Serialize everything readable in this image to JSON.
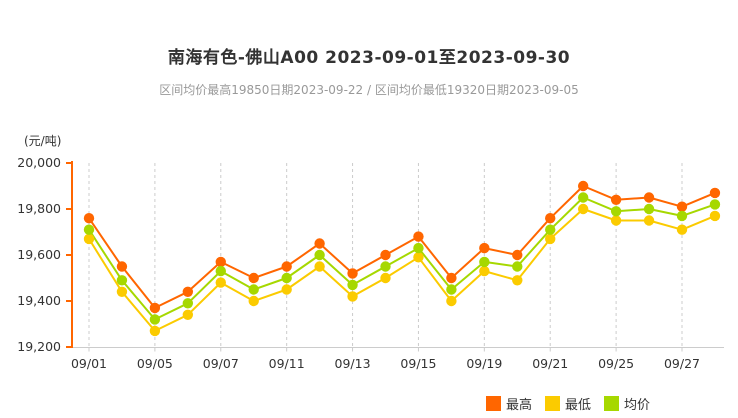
{
  "page": {
    "title": "南海有色-佛山A00 2023-09-01至2023-09-30",
    "subtitle": "区间均价最高19850日期2023-09-22 / 区间均价最低19320日期2023-09-05",
    "unit_label": "(元/吨)"
  },
  "colors": {
    "axis_y": "#FF6600",
    "axis_x": "#CCCCCC",
    "grid": "#CCCCCC",
    "title_text": "#333333",
    "subtitle_text": "#999999",
    "tick_label_text": "#333333"
  },
  "chart_data": {
    "type": "line",
    "title": "南海有色-佛山A00 2023-09-01至2023-09-30",
    "subtitle": "区间均价最高19850日期2023-09-22 / 区间均价最低19320日期2023-09-05",
    "ylabel": "元/吨",
    "x": [
      "09/01",
      "09/04",
      "09/05",
      "09/06",
      "09/07",
      "09/08",
      "09/11",
      "09/12",
      "09/13",
      "09/14",
      "09/15",
      "09/18",
      "09/19",
      "09/20",
      "09/21",
      "09/22",
      "09/25",
      "09/26",
      "09/27",
      "09/28"
    ],
    "xtick_indices": [
      0,
      2,
      4,
      6,
      8,
      10,
      12,
      14,
      16,
      18
    ],
    "xtick_labels": [
      "09/01",
      "09/05",
      "09/07",
      "09/11",
      "09/13",
      "09/15",
      "09/19",
      "09/21",
      "09/25",
      "09/27"
    ],
    "ylim": [
      19200,
      20000
    ],
    "yticks": [
      19200,
      19400,
      19600,
      19800,
      20000
    ],
    "grid": "vertical-dashed",
    "legend_position": "bottom-right",
    "series": [
      {
        "name": "最高",
        "color": "#FF6600",
        "values": [
          19760,
          19550,
          19370,
          19440,
          19570,
          19500,
          19550,
          19650,
          19520,
          19600,
          19680,
          19500,
          19630,
          19600,
          19760,
          19900,
          19840,
          19850,
          19810,
          19870
        ]
      },
      {
        "name": "最低",
        "color": "#FBCB00",
        "values": [
          19670,
          19440,
          19270,
          19340,
          19480,
          19400,
          19450,
          19550,
          19420,
          19500,
          19590,
          19400,
          19530,
          19490,
          19670,
          19800,
          19750,
          19750,
          19710,
          19770
        ]
      },
      {
        "name": "均价",
        "color": "#A6D800",
        "values": [
          19710,
          19490,
          19320,
          19390,
          19530,
          19450,
          19500,
          19600,
          19470,
          19550,
          19630,
          19450,
          19570,
          19550,
          19710,
          19850,
          19790,
          19800,
          19770,
          19820
        ]
      }
    ],
    "annotations": {
      "max_avg_price": 19850,
      "max_avg_date": "2023-09-22",
      "min_avg_price": 19320,
      "min_avg_date": "2023-09-05"
    }
  }
}
